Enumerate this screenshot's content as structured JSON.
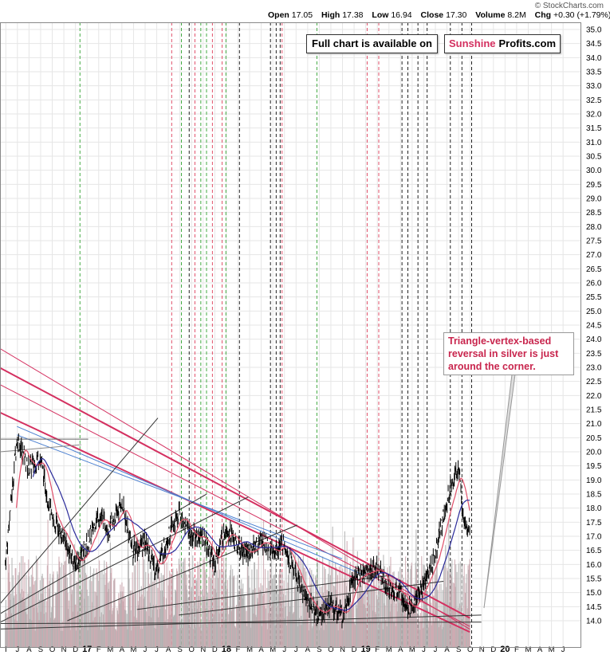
{
  "header": {
    "credit": "© StockCharts.com",
    "open_label": "Open",
    "open": "17.05",
    "high_label": "High",
    "high": "17.38",
    "low_label": "Low",
    "low": "16.94",
    "close_label": "Close",
    "close": "17.30",
    "volume_label": "Volume",
    "volume": "8.2M",
    "chg_label": "Chg",
    "chg": "+0.30 (+1.79%)"
  },
  "banner": {
    "text": "Full chart is available on",
    "brand_a": "Sunshine",
    "brand_b": "Profits.com"
  },
  "annotation": "Triangle-vertex-based reversal in silver is just around the corner.",
  "colors": {
    "up": "#000000",
    "down": "#000000",
    "red_line": "#d43060",
    "blue_line": "#4a7fd0",
    "ma_red": "#e0506a",
    "ma_blue": "#2a2a9a",
    "volume": "#c8a0a8",
    "volume_grey": "#aaaaaa",
    "grid": "#e6e6e6"
  },
  "chart_data": {
    "type": "line",
    "title": "",
    "ylabel": "",
    "ylim": [
      13.6,
      35.2
    ],
    "y_ticks": [
      14.0,
      14.5,
      15.0,
      15.5,
      16.0,
      16.5,
      17.0,
      17.5,
      18.0,
      18.5,
      19.0,
      19.5,
      20.0,
      20.5,
      21.0,
      21.5,
      22.0,
      22.5,
      23.0,
      23.5,
      24.0,
      24.5,
      25.0,
      25.5,
      26.0,
      26.5,
      27.0,
      27.5,
      28.0,
      28.5,
      29.0,
      29.5,
      30.0,
      30.5,
      31.0,
      31.5,
      32.0,
      32.5,
      33.0,
      33.5,
      34.0,
      34.5,
      35.0
    ],
    "x_ticks": [
      "I",
      "J",
      "A",
      "S",
      "O",
      "N",
      "D",
      "17",
      "F",
      "M",
      "A",
      "M",
      "J",
      "J",
      "A",
      "S",
      "O",
      "N",
      "D",
      "18",
      "F",
      "M",
      "A",
      "M",
      "J",
      "J",
      "A",
      "S",
      "O",
      "N",
      "D",
      "19",
      "F",
      "M",
      "A",
      "M",
      "J",
      "J",
      "A",
      "S",
      "O",
      "N",
      "D",
      "20",
      "F",
      "M",
      "A",
      "M",
      "J"
    ],
    "price_path": [
      {
        "t": "2016-06",
        "v": 16.0
      },
      {
        "t": "2016-07",
        "v": 20.5
      },
      {
        "t": "2016-08",
        "v": 19.4
      },
      {
        "t": "2016-09",
        "v": 19.8
      },
      {
        "t": "2016-10",
        "v": 17.6
      },
      {
        "t": "2016-11",
        "v": 17.0
      },
      {
        "t": "2016-12",
        "v": 16.0
      },
      {
        "t": "2017-01",
        "v": 16.6
      },
      {
        "t": "2017-02",
        "v": 17.8
      },
      {
        "t": "2017-03",
        "v": 17.2
      },
      {
        "t": "2017-04",
        "v": 18.2
      },
      {
        "t": "2017-05",
        "v": 16.5
      },
      {
        "t": "2017-06",
        "v": 16.8
      },
      {
        "t": "2017-07",
        "v": 15.8
      },
      {
        "t": "2017-08",
        "v": 17.0
      },
      {
        "t": "2017-09",
        "v": 17.8
      },
      {
        "t": "2017-10",
        "v": 17.0
      },
      {
        "t": "2017-11",
        "v": 17.0
      },
      {
        "t": "2017-12",
        "v": 16.0
      },
      {
        "t": "2018-01",
        "v": 17.4
      },
      {
        "t": "2018-02",
        "v": 16.6
      },
      {
        "t": "2018-03",
        "v": 16.4
      },
      {
        "t": "2018-04",
        "v": 16.9
      },
      {
        "t": "2018-05",
        "v": 16.4
      },
      {
        "t": "2018-06",
        "v": 16.8
      },
      {
        "t": "2018-07",
        "v": 15.6
      },
      {
        "t": "2018-08",
        "v": 14.7
      },
      {
        "t": "2018-09",
        "v": 14.2
      },
      {
        "t": "2018-10",
        "v": 14.6
      },
      {
        "t": "2018-11",
        "v": 14.2
      },
      {
        "t": "2018-12",
        "v": 15.5
      },
      {
        "t": "2019-01",
        "v": 15.7
      },
      {
        "t": "2019-02",
        "v": 15.9
      },
      {
        "t": "2019-03",
        "v": 15.2
      },
      {
        "t": "2019-04",
        "v": 15.0
      },
      {
        "t": "2019-05",
        "v": 14.4
      },
      {
        "t": "2019-06",
        "v": 15.3
      },
      {
        "t": "2019-07",
        "v": 16.3
      },
      {
        "t": "2019-08",
        "v": 18.2
      },
      {
        "t": "2019-09",
        "v": 19.5
      },
      {
        "t": "2019-09b",
        "v": 17.6
      },
      {
        "t": "2019-10",
        "v": 17.3
      }
    ],
    "vertical_lines": {
      "green": [
        "2016-12-28",
        "2017-09-20",
        "2017-11-10",
        "2017-11-25",
        "2018-01-15",
        "2018-09-10"
      ],
      "red": [
        "2017-08-25",
        "2017-10-25",
        "2017-12-10",
        "2018-01-05",
        "2018-06-10",
        "2019-01-20",
        "2019-02-20"
      ],
      "black": [
        "2017-10-10",
        "2018-02-20",
        "2018-05-10",
        "2018-05-25",
        "2018-06-05",
        "2019-04-20",
        "2019-05-05",
        "2019-06-01",
        "2019-06-25",
        "2019-08-25",
        "2019-09-25",
        "2019-10-20"
      ]
    },
    "trendlines": {
      "red": [
        {
          "from": [
            "2016-05",
            23.1
          ],
          "to": [
            "2019-10",
            14.1
          ]
        },
        {
          "from": [
            "2016-05",
            21.5
          ],
          "to": [
            "2019-10",
            13.6
          ]
        },
        {
          "from": [
            "2016-05",
            22.5
          ],
          "to": [
            "2019-10",
            13.8
          ]
        },
        {
          "from": [
            "2016-05",
            23.8
          ],
          "to": [
            "2019-10",
            13.7
          ]
        }
      ],
      "blue": [
        {
          "from": [
            "2016-07",
            20.9
          ],
          "to": [
            "2019-01",
            15.6
          ]
        },
        {
          "from": [
            "2016-07",
            20.6
          ],
          "to": [
            "2018-11",
            16.2
          ]
        }
      ],
      "black": [
        {
          "from": [
            "2016-05",
            13.7
          ],
          "to": [
            "2019-11",
            14.2
          ]
        },
        {
          "from": [
            "2016-05",
            13.9
          ],
          "to": [
            "2019-11",
            13.95
          ]
        }
      ]
    }
  }
}
